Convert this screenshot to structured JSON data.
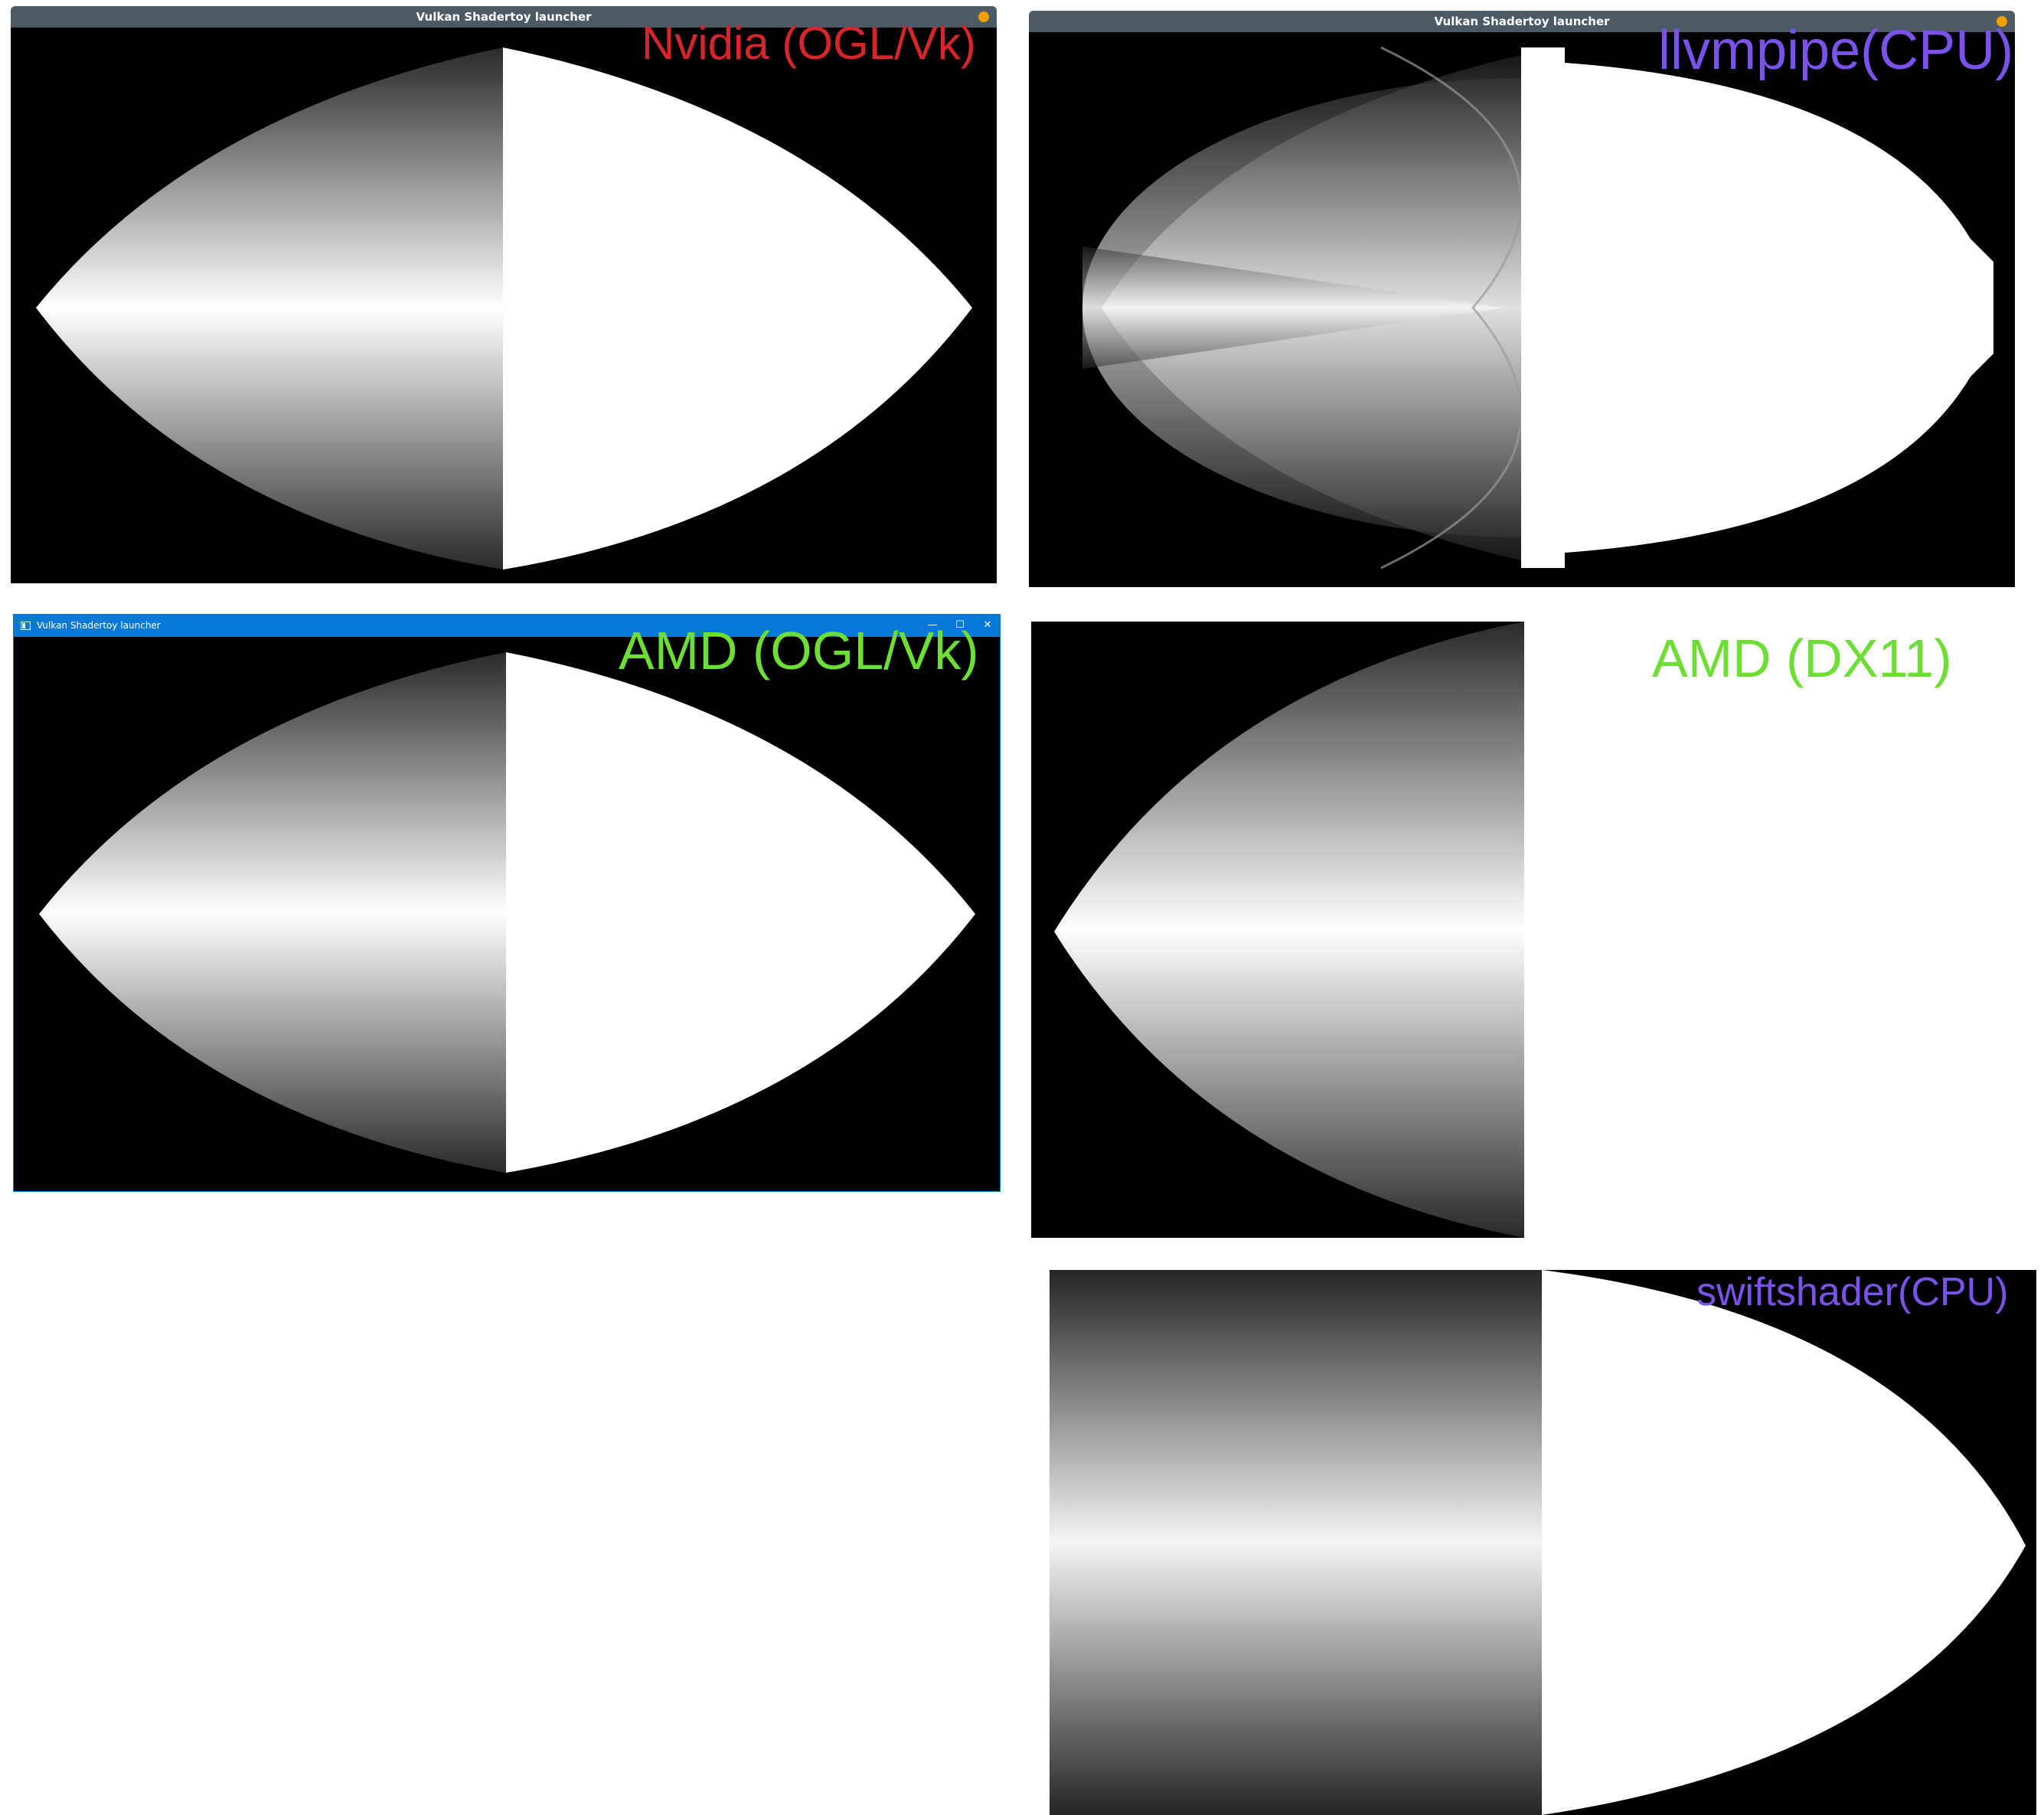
{
  "window_title": "Vulkan Shadertoy launcher",
  "win_controls": {
    "minimize": "—",
    "maximize": "☐",
    "close": "✕"
  },
  "labels": {
    "nvidia": "Nvidia (OGL/Vk)",
    "llvmpipe": "llvmpipe(CPU)",
    "amd_ogl": "AMD (OGL/Vk)",
    "amd_dx11": "AMD (DX11)",
    "swiftshader": "swiftshader(CPU)"
  },
  "colors": {
    "nvidia_label": "#d7262b",
    "cpu_label": "#7b52ea",
    "amd_label": "#6cde34",
    "linux_titlebar": "#4c5a66",
    "windows_titlebar": "#0a78d7",
    "close_dot": "#f0a000"
  }
}
